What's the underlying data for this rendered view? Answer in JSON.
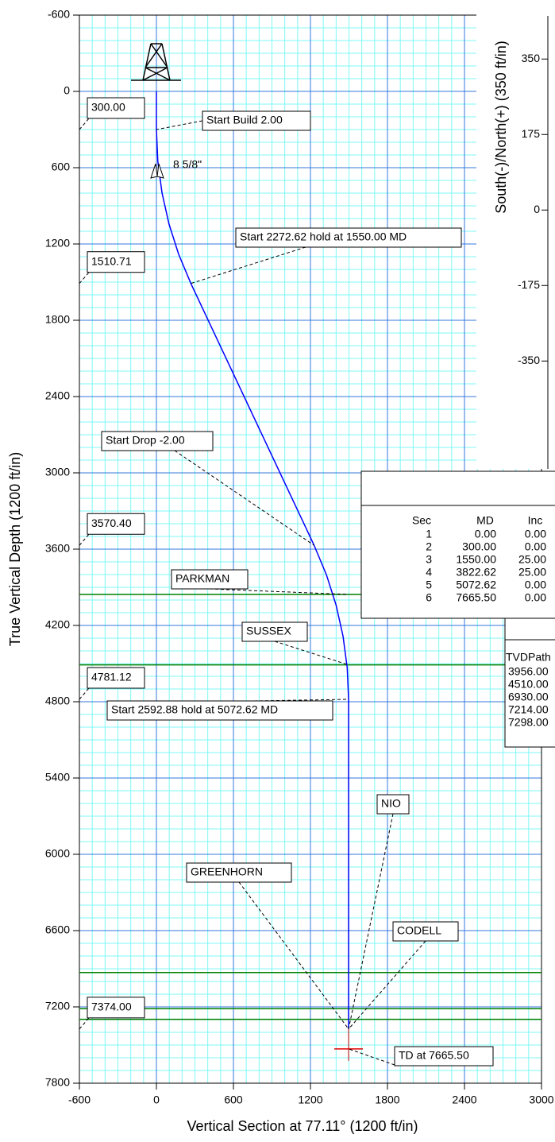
{
  "chart_data": [
    {
      "type": "line",
      "x_label": "Vertical Section at 77.11° (1200 ft/in)",
      "y_label": "True Vertical Depth (1200 ft/in)",
      "xlim": [
        -600,
        3000
      ],
      "ylim": [
        -600,
        7800
      ],
      "y_inverted": true,
      "xticks": [
        -600,
        0,
        600,
        1200,
        1800,
        2400,
        3000
      ],
      "yticks": [
        -600,
        0,
        600,
        1200,
        1800,
        2400,
        3000,
        3600,
        4200,
        4800,
        5400,
        6000,
        6600,
        7200,
        7800
      ],
      "grid": true,
      "minor_grid_step": 100,
      "series": [
        {
          "color": "#0000ff",
          "x": [
            0,
            0,
            10.9,
            43.5,
            97.6,
            172.8,
            268.4,
            1228.8,
            1324.4,
            1399.6,
            1453.7,
            1486.3,
            1497.2,
            1497.2
          ],
          "values": [
            0,
            300,
            549.7,
            797.5,
            1041.5,
            1279.8,
            1510.71,
            3570.4,
            3801.3,
            4039.6,
            4283.6,
            4531.4,
            4781.12,
            7374
          ]
        }
      ],
      "formations": {
        "names": [
          "PARKMAN",
          "SUSSEX",
          "NIO",
          "CODELL",
          "GREENHORN"
        ],
        "values": [
          3956,
          4510,
          6930,
          7214,
          7298
        ],
        "color": "#008000"
      },
      "depth_markers": {
        "values": [
          300,
          1510.71,
          3570.4,
          4781.12,
          7374
        ],
        "value_labels": [
          "300.00",
          "1510.71",
          "3570.40",
          "4781.12",
          "7374.00"
        ]
      },
      "annotations": [
        "Start Build 2.00",
        "Start 2272.62 hold at 1550.00 MD",
        "Start Drop -2.00",
        "Start 2592.88 hold at 5072.62 MD",
        "TD at 7665.50"
      ],
      "casing": "8 5/8\""
    },
    {
      "type": "line",
      "y_label": "South(-)/North(+) (350 ft/in)",
      "ylim": [
        -600,
        450
      ],
      "yticks": [
        -350,
        -175,
        0,
        175,
        350
      ]
    }
  ],
  "tables": {
    "sections": {
      "columns": [
        "Sec",
        "MD",
        "Inc"
      ],
      "rows": [
        [
          1,
          "0.00",
          "0.00"
        ],
        [
          2,
          "300.00",
          "0.00"
        ],
        [
          3,
          "1550.00",
          "25.00"
        ],
        [
          4,
          "3822.62",
          "25.00"
        ],
        [
          5,
          "5072.62",
          "0.00"
        ],
        [
          6,
          "7665.50",
          "0.00"
        ]
      ]
    },
    "formations": {
      "columns": [
        "TVDPath"
      ],
      "rows": [
        [
          "3956.00"
        ],
        [
          "4510.00"
        ],
        [
          "6930.00"
        ],
        [
          "7214.00"
        ],
        [
          "7298.00"
        ]
      ]
    }
  }
}
